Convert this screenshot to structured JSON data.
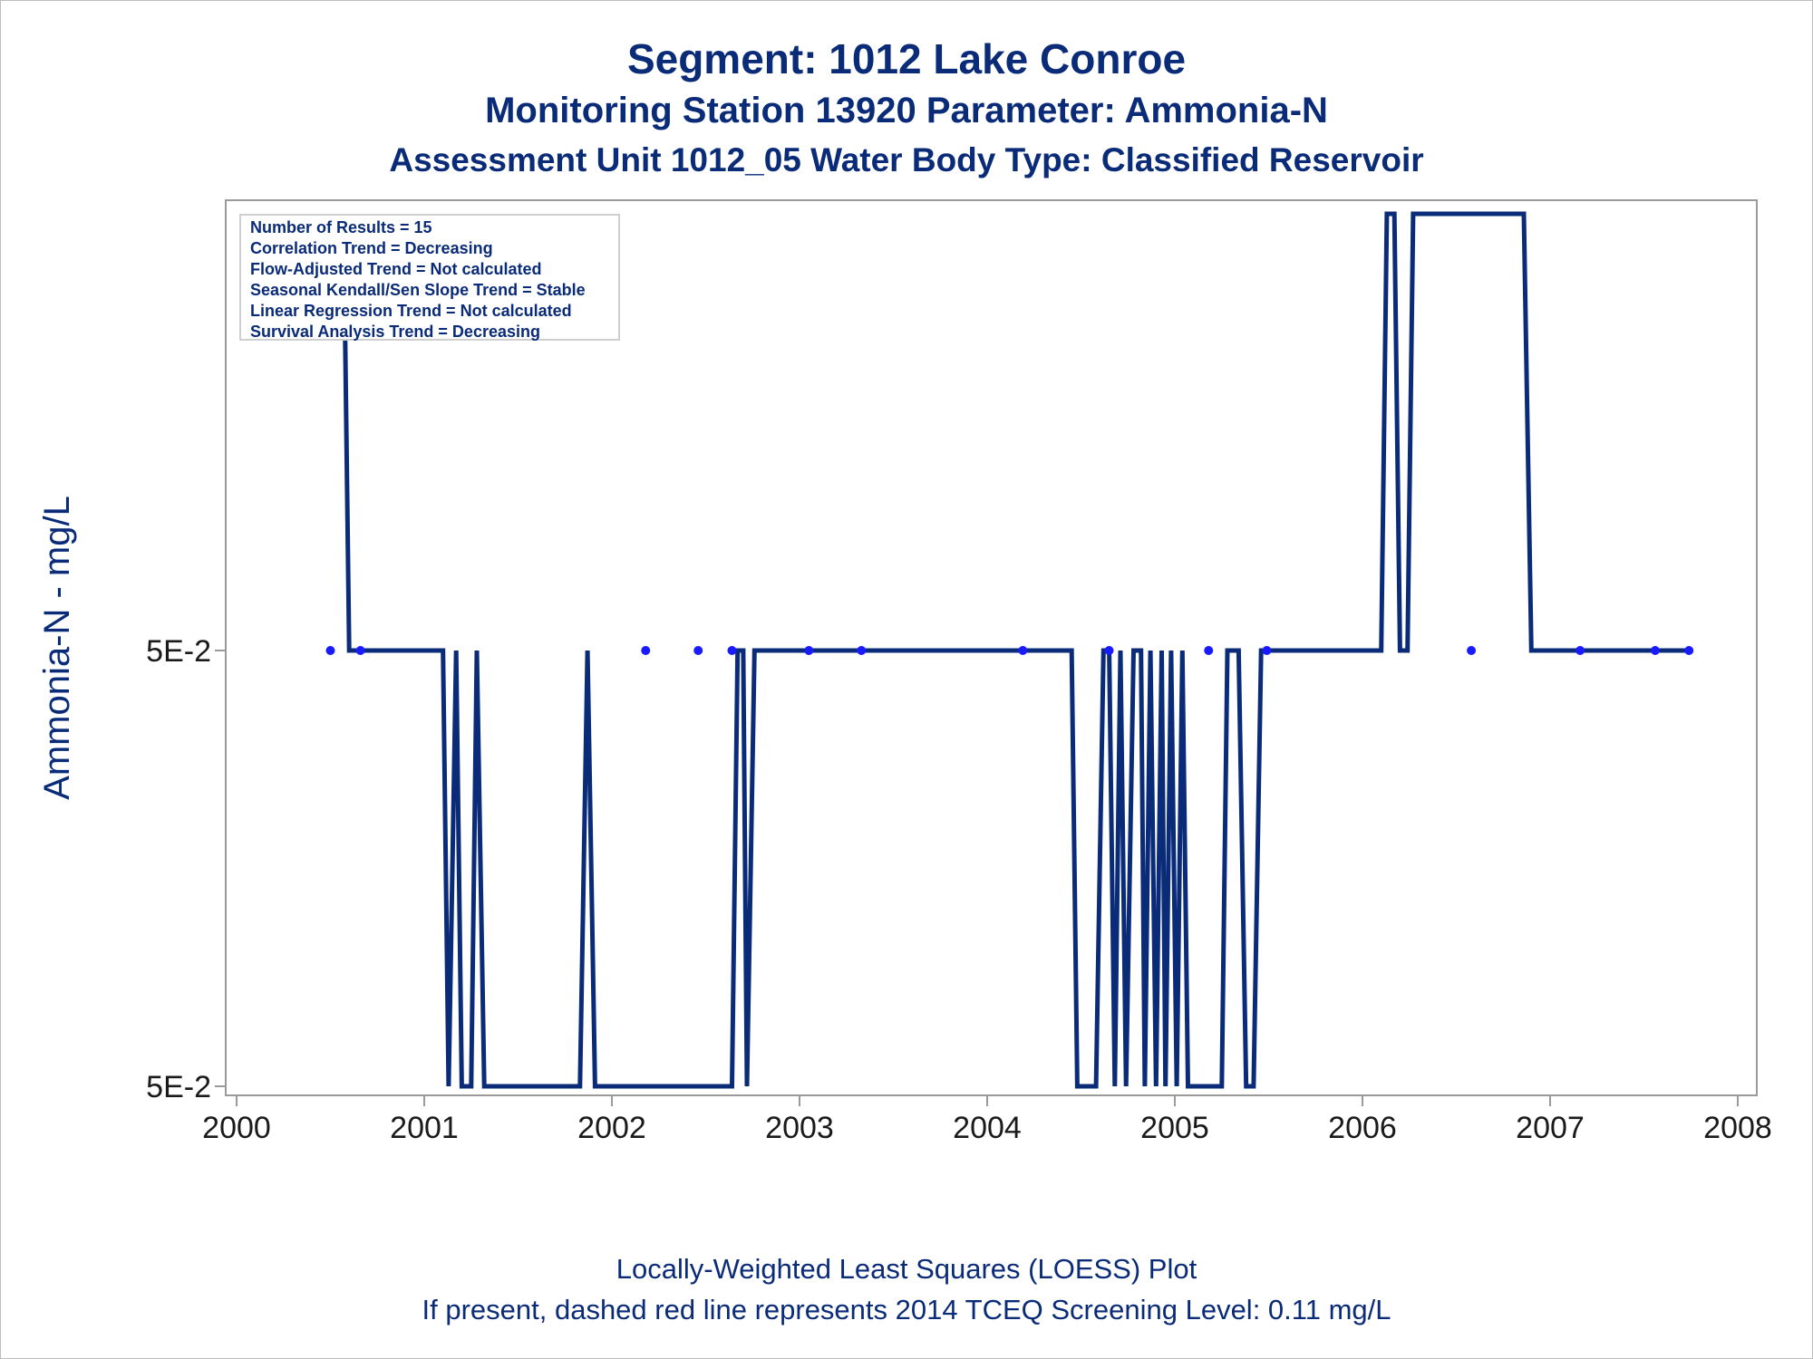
{
  "titles": {
    "line1": "Segment: 1012  Lake Conroe",
    "line2": "Monitoring Station 13920 Parameter: Ammonia-N",
    "line3": "Assessment Unit 1012_05   Water Body Type: Classified Reservoir"
  },
  "footnotes": {
    "line1": "Locally-Weighted Least Squares (LOESS) Plot",
    "line2": "If present, dashed red line represents 2014 TCEQ Screening Level: 0.11 mg/L"
  },
  "stats_box": [
    "Number of Results = 15",
    "Correlation Trend = Decreasing",
    "Flow-Adjusted Trend = Not calculated",
    "Seasonal Kendall/Sen Slope Trend = Stable",
    "Linear Regression Trend = Not calculated",
    "Survival Analysis Trend = Decreasing"
  ],
  "colors": {
    "text": "#0a2b78",
    "line": "#0a2b78",
    "points": "#1a1aff",
    "axis": "#9a9a9a"
  },
  "chart_data": {
    "type": "line",
    "ylabel": "Ammonia-N - mg/L",
    "xlabel": "",
    "x_ticks": [
      2000,
      2001,
      2002,
      2003,
      2004,
      2005,
      2006,
      2007,
      2008
    ],
    "xlim": [
      2000,
      2008
    ],
    "y_ticks": [
      {
        "value": 0.05,
        "label": "5E-2"
      },
      {
        "value": 0.05,
        "label": "5E-2"
      }
    ],
    "y_level_note": "three rendered levels: upper (top of plot), middle (5E-2 tick), lower (bottom 5E-2 tick)",
    "series": [
      {
        "kind": "loess_line",
        "points": [
          [
            2000.57,
            "upper"
          ],
          [
            2000.6,
            "middle"
          ],
          [
            2001.1,
            "middle"
          ],
          [
            2001.13,
            "lower"
          ],
          [
            2001.17,
            "middle"
          ],
          [
            2001.2,
            "lower"
          ],
          [
            2001.25,
            "lower"
          ],
          [
            2001.28,
            "middle"
          ],
          [
            2001.32,
            "lower"
          ],
          [
            2001.83,
            "lower"
          ],
          [
            2001.87,
            "middle"
          ],
          [
            2001.91,
            "lower"
          ],
          [
            2002.64,
            "lower"
          ],
          [
            2002.67,
            "middle"
          ],
          [
            2002.7,
            "middle"
          ],
          [
            2002.72,
            "lower"
          ],
          [
            2002.76,
            "middle"
          ],
          [
            2004.45,
            "middle"
          ],
          [
            2004.48,
            "lower"
          ],
          [
            2004.58,
            "lower"
          ],
          [
            2004.62,
            "middle"
          ],
          [
            2004.65,
            "middle"
          ],
          [
            2004.68,
            "lower"
          ],
          [
            2004.71,
            "middle"
          ],
          [
            2004.74,
            "lower"
          ],
          [
            2004.78,
            "middle"
          ],
          [
            2004.82,
            "middle"
          ],
          [
            2004.84,
            "lower"
          ],
          [
            2004.87,
            "middle"
          ],
          [
            2004.9,
            "lower"
          ],
          [
            2004.93,
            "middle"
          ],
          [
            2004.95,
            "lower"
          ],
          [
            2004.98,
            "middle"
          ],
          [
            2005.01,
            "lower"
          ],
          [
            2005.04,
            "middle"
          ],
          [
            2005.07,
            "lower"
          ],
          [
            2005.25,
            "lower"
          ],
          [
            2005.28,
            "middle"
          ],
          [
            2005.34,
            "middle"
          ],
          [
            2005.38,
            "lower"
          ],
          [
            2005.42,
            "lower"
          ],
          [
            2005.46,
            "middle"
          ],
          [
            2006.1,
            "middle"
          ],
          [
            2006.13,
            "upper"
          ],
          [
            2006.17,
            "upper"
          ],
          [
            2006.2,
            "middle"
          ],
          [
            2006.24,
            "middle"
          ],
          [
            2006.27,
            "upper"
          ],
          [
            2006.86,
            "upper"
          ],
          [
            2006.9,
            "middle"
          ],
          [
            2007.73,
            "middle"
          ]
        ]
      },
      {
        "kind": "observations",
        "x": [
          2000.5,
          2000.66,
          2002.18,
          2002.46,
          2002.64,
          2003.05,
          2003.33,
          2004.19,
          2004.65,
          2005.18,
          2005.49,
          2006.58,
          2007.16,
          2007.56,
          2007.74
        ],
        "y": [
          0.05,
          0.05,
          0.05,
          0.05,
          0.05,
          0.05,
          0.05,
          0.05,
          0.05,
          0.05,
          0.05,
          0.05,
          0.05,
          0.05,
          0.05
        ]
      }
    ],
    "grid": false
  }
}
